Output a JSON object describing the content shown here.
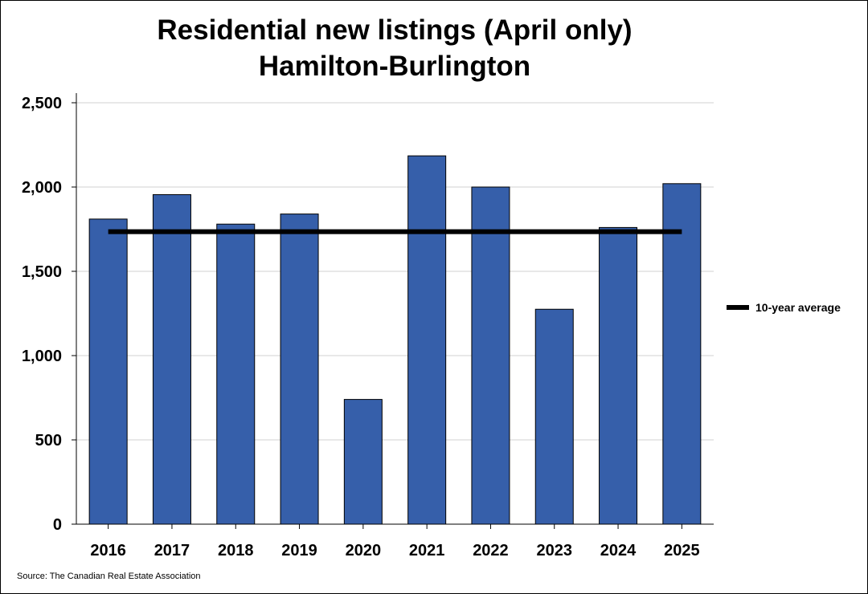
{
  "chart_data": {
    "type": "bar",
    "title": "Residential new listings (April only)",
    "subtitle": "Hamilton-Burlington",
    "categories": [
      "2016",
      "2017",
      "2018",
      "2019",
      "2020",
      "2021",
      "2022",
      "2023",
      "2024",
      "2025"
    ],
    "series": [
      {
        "name": "Residential new listings",
        "values": [
          1810,
          1955,
          1780,
          1840,
          740,
          2185,
          2000,
          1275,
          1760,
          2020
        ],
        "color": "#365FAA"
      },
      {
        "name": "10-year average",
        "type": "line",
        "value": 1735,
        "color": "#000000"
      }
    ],
    "y_ticks": [
      "0",
      "500",
      "1,000",
      "1,500",
      "2,000",
      "2,500"
    ],
    "ylim": [
      0,
      2500
    ],
    "xlabel": "",
    "ylabel": "",
    "grid": true,
    "legend": {
      "position": "right",
      "entries": [
        "10-year average"
      ]
    },
    "source": "Source: The Canadian Real Estate Association"
  }
}
